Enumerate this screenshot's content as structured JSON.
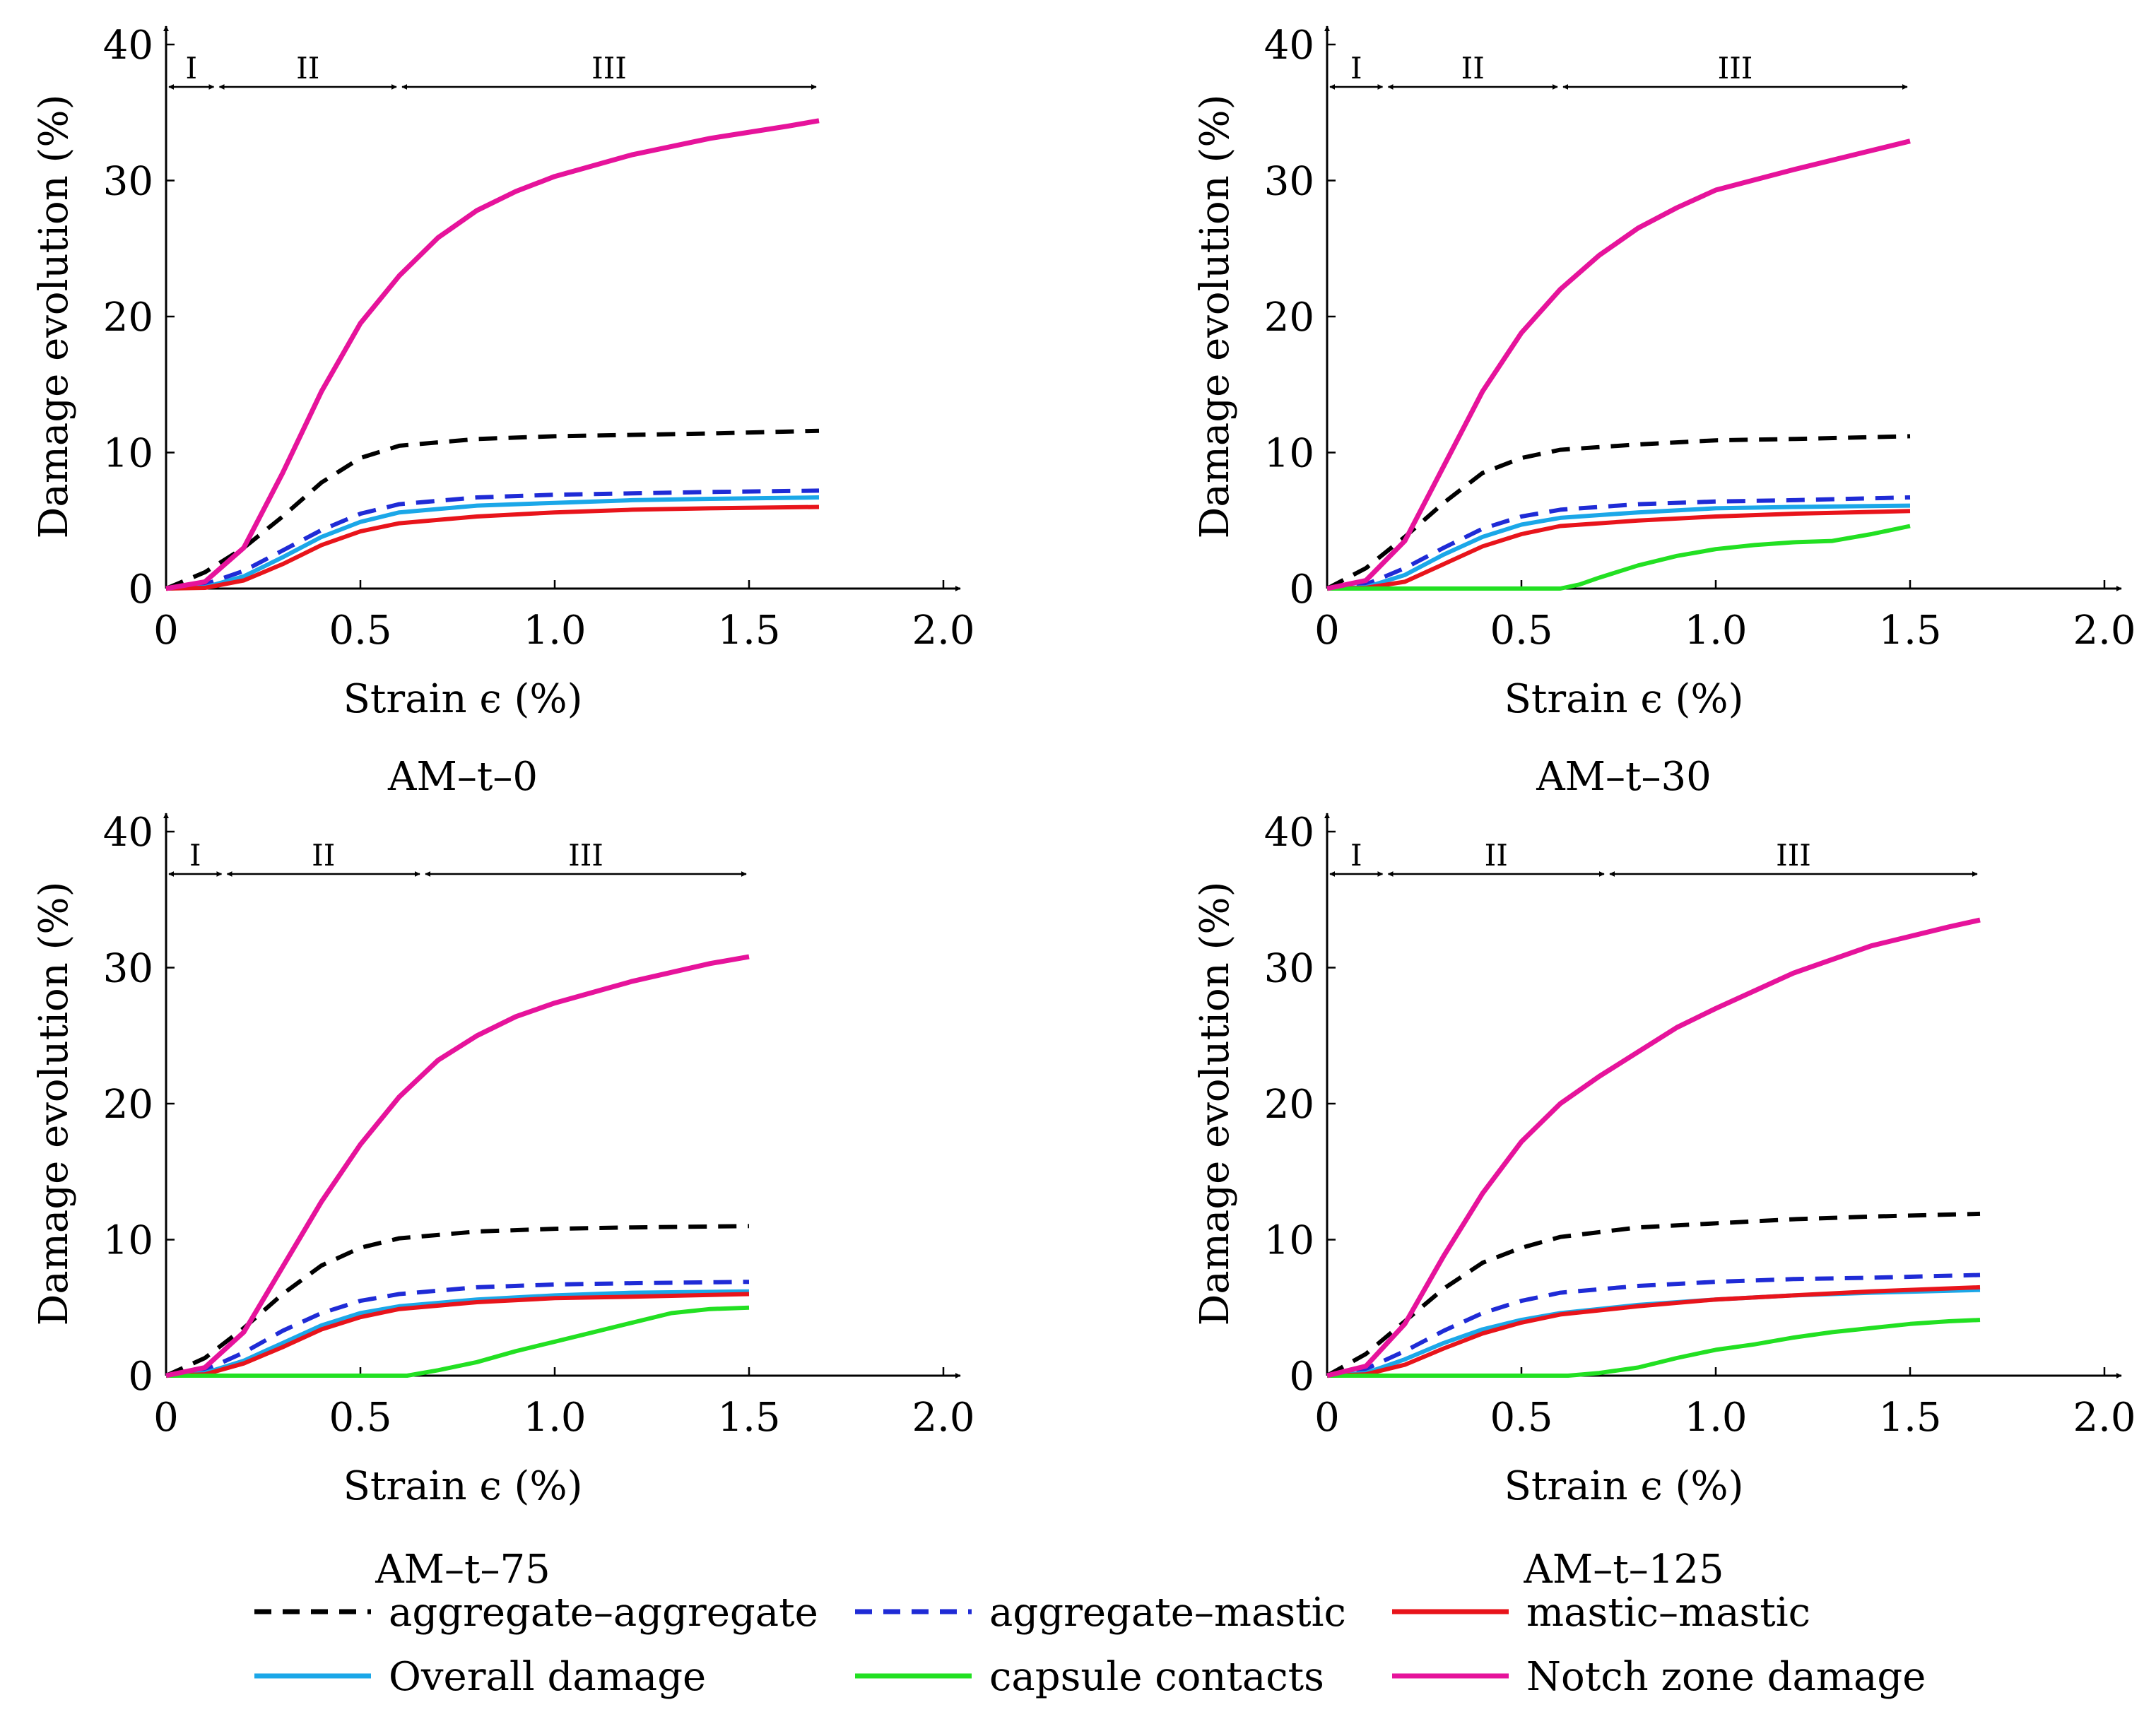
{
  "legend": [
    {
      "key": "aa",
      "label": "aggregate–aggregate",
      "color": "#000000",
      "dash": true
    },
    {
      "key": "am",
      "label": "aggregate–mastic",
      "color": "#1f2bd6",
      "dash": true
    },
    {
      "key": "mm",
      "label": "mastic–mastic",
      "color": "#e8141b",
      "dash": false
    },
    {
      "key": "ov",
      "label": "Overall damage",
      "color": "#1ba7e8",
      "dash": false
    },
    {
      "key": "cap",
      "label": "capsule contacts",
      "color": "#22e022",
      "dash": false
    },
    {
      "key": "notch",
      "label": "Notch zone damage",
      "color": "#e6139b",
      "dash": false
    }
  ],
  "chart_data": [
    {
      "type": "line",
      "title": "AM–t–0",
      "xlabel": "Strain ϵ (%)",
      "ylabel": "Damage evolution (%)",
      "xlim": [
        0,
        2.0
      ],
      "ylim": [
        0,
        40
      ],
      "xticks": [
        "0",
        "0.5",
        "1.0",
        "1.5",
        "2.0"
      ],
      "yticks": [
        "0",
        "10",
        "20",
        "30",
        "40"
      ],
      "regions": [
        {
          "label": "I",
          "from": 0,
          "to": 0.13
        },
        {
          "label": "II",
          "from": 0.13,
          "to": 0.6
        },
        {
          "label": "III",
          "from": 0.6,
          "to": 1.68
        }
      ],
      "series": [
        {
          "key": "aa",
          "name": "aggregate–aggregate",
          "x": [
            0,
            0.1,
            0.2,
            0.3,
            0.4,
            0.5,
            0.6,
            0.8,
            1.0,
            1.2,
            1.4,
            1.68
          ],
          "y": [
            0,
            1.2,
            3.0,
            5.3,
            7.8,
            9.6,
            10.5,
            11.0,
            11.2,
            11.3,
            11.4,
            11.6
          ]
        },
        {
          "key": "am",
          "name": "aggregate–mastic",
          "x": [
            0,
            0.1,
            0.2,
            0.3,
            0.4,
            0.5,
            0.6,
            0.8,
            1.0,
            1.2,
            1.4,
            1.68
          ],
          "y": [
            0,
            0.3,
            1.3,
            2.8,
            4.3,
            5.5,
            6.2,
            6.7,
            6.9,
            7.0,
            7.1,
            7.2
          ]
        },
        {
          "key": "ov",
          "name": "Overall damage",
          "x": [
            0,
            0.1,
            0.2,
            0.3,
            0.4,
            0.5,
            0.6,
            0.8,
            1.0,
            1.2,
            1.4,
            1.68
          ],
          "y": [
            0,
            0.1,
            0.9,
            2.3,
            3.8,
            4.9,
            5.6,
            6.1,
            6.3,
            6.5,
            6.6,
            6.7
          ]
        },
        {
          "key": "mm",
          "name": "mastic–mastic",
          "x": [
            0,
            0.1,
            0.2,
            0.3,
            0.4,
            0.5,
            0.6,
            0.8,
            1.0,
            1.2,
            1.4,
            1.68
          ],
          "y": [
            0,
            0.05,
            0.6,
            1.8,
            3.2,
            4.2,
            4.8,
            5.3,
            5.6,
            5.8,
            5.9,
            6.0
          ]
        },
        {
          "key": "notch",
          "name": "Notch zone damage",
          "x": [
            0,
            0.1,
            0.2,
            0.3,
            0.4,
            0.5,
            0.6,
            0.7,
            0.8,
            0.9,
            1.0,
            1.2,
            1.4,
            1.6,
            1.68
          ],
          "y": [
            0,
            0.5,
            3.0,
            8.5,
            14.5,
            19.5,
            23.0,
            25.8,
            27.8,
            29.2,
            30.3,
            31.9,
            33.1,
            34.0,
            34.4
          ]
        }
      ]
    },
    {
      "type": "line",
      "title": "AM–t–30",
      "xlabel": "Strain ϵ (%)",
      "ylabel": "Damage evolution (%)",
      "xlim": [
        0,
        2.0
      ],
      "ylim": [
        0,
        40
      ],
      "xticks": [
        "0",
        "0.5",
        "1.0",
        "1.5",
        "2.0"
      ],
      "yticks": [
        "0",
        "10",
        "20",
        "30",
        "40"
      ],
      "regions": [
        {
          "label": "I",
          "from": 0,
          "to": 0.15
        },
        {
          "label": "II",
          "from": 0.15,
          "to": 0.6
        },
        {
          "label": "III",
          "from": 0.6,
          "to": 1.5
        }
      ],
      "series": [
        {
          "key": "aa",
          "name": "aggregate–aggregate",
          "x": [
            0,
            0.1,
            0.2,
            0.3,
            0.4,
            0.5,
            0.6,
            0.8,
            1.0,
            1.2,
            1.5
          ],
          "y": [
            0,
            1.5,
            3.8,
            6.3,
            8.5,
            9.6,
            10.2,
            10.6,
            10.9,
            11.0,
            11.2
          ]
        },
        {
          "key": "am",
          "name": "aggregate–mastic",
          "x": [
            0,
            0.1,
            0.2,
            0.3,
            0.4,
            0.5,
            0.6,
            0.8,
            1.0,
            1.2,
            1.5
          ],
          "y": [
            0,
            0.3,
            1.5,
            3.0,
            4.4,
            5.3,
            5.8,
            6.2,
            6.4,
            6.5,
            6.7
          ]
        },
        {
          "key": "ov",
          "name": "Overall damage",
          "x": [
            0,
            0.1,
            0.2,
            0.3,
            0.4,
            0.5,
            0.6,
            0.8,
            1.0,
            1.2,
            1.5
          ],
          "y": [
            0,
            0.1,
            1.0,
            2.5,
            3.8,
            4.7,
            5.2,
            5.6,
            5.9,
            6.0,
            6.1
          ]
        },
        {
          "key": "mm",
          "name": "mastic–mastic",
          "x": [
            0,
            0.1,
            0.2,
            0.3,
            0.4,
            0.5,
            0.6,
            0.8,
            1.0,
            1.2,
            1.5
          ],
          "y": [
            0,
            0.05,
            0.5,
            1.8,
            3.1,
            4.0,
            4.6,
            5.0,
            5.3,
            5.5,
            5.7
          ]
        },
        {
          "key": "cap",
          "name": "capsule contacts",
          "x": [
            0,
            0.6,
            0.65,
            0.7,
            0.8,
            0.9,
            1.0,
            1.1,
            1.2,
            1.3,
            1.4,
            1.5
          ],
          "y": [
            0,
            0,
            0.3,
            0.8,
            1.7,
            2.4,
            2.9,
            3.2,
            3.4,
            3.5,
            4.0,
            4.6
          ]
        },
        {
          "key": "notch",
          "name": "Notch zone damage",
          "x": [
            0,
            0.1,
            0.2,
            0.3,
            0.4,
            0.5,
            0.6,
            0.7,
            0.8,
            0.9,
            1.0,
            1.2,
            1.4,
            1.5
          ],
          "y": [
            0,
            0.6,
            3.5,
            9.0,
            14.5,
            18.8,
            22.0,
            24.5,
            26.5,
            28.0,
            29.3,
            30.8,
            32.2,
            32.9
          ]
        }
      ]
    },
    {
      "type": "line",
      "title": "AM–t–75",
      "xlabel": "Strain ϵ (%)",
      "ylabel": "Damage evolution (%)",
      "xlim": [
        0,
        2.0
      ],
      "ylim": [
        0,
        40
      ],
      "xticks": [
        "0",
        "0.5",
        "1.0",
        "1.5",
        "2.0"
      ],
      "yticks": [
        "0",
        "10",
        "20",
        "30",
        "40"
      ],
      "regions": [
        {
          "label": "I",
          "from": 0,
          "to": 0.15
        },
        {
          "label": "II",
          "from": 0.15,
          "to": 0.66
        },
        {
          "label": "III",
          "from": 0.66,
          "to": 1.5
        }
      ],
      "series": [
        {
          "key": "aa",
          "name": "aggregate–aggregate",
          "x": [
            0,
            0.1,
            0.2,
            0.3,
            0.4,
            0.5,
            0.6,
            0.8,
            1.0,
            1.2,
            1.5
          ],
          "y": [
            0,
            1.3,
            3.5,
            6.0,
            8.1,
            9.4,
            10.1,
            10.6,
            10.8,
            10.9,
            11.0
          ]
        },
        {
          "key": "am",
          "name": "aggregate–mastic",
          "x": [
            0,
            0.1,
            0.2,
            0.3,
            0.4,
            0.5,
            0.6,
            0.8,
            1.0,
            1.2,
            1.5
          ],
          "y": [
            0,
            0.4,
            1.7,
            3.3,
            4.6,
            5.5,
            6.0,
            6.5,
            6.7,
            6.8,
            6.9
          ]
        },
        {
          "key": "ov",
          "name": "Overall damage",
          "x": [
            0,
            0.1,
            0.2,
            0.3,
            0.4,
            0.5,
            0.6,
            0.8,
            1.0,
            1.2,
            1.5
          ],
          "y": [
            0,
            0.2,
            1.1,
            2.4,
            3.7,
            4.6,
            5.1,
            5.6,
            5.9,
            6.1,
            6.2
          ]
        },
        {
          "key": "mm",
          "name": "mastic–mastic",
          "x": [
            0,
            0.1,
            0.2,
            0.3,
            0.4,
            0.5,
            0.6,
            0.8,
            1.0,
            1.2,
            1.5
          ],
          "y": [
            0,
            0.1,
            0.9,
            2.1,
            3.4,
            4.3,
            4.9,
            5.4,
            5.7,
            5.8,
            6.0
          ]
        },
        {
          "key": "cap",
          "name": "capsule contacts",
          "x": [
            0,
            0.62,
            0.7,
            0.8,
            0.9,
            1.0,
            1.1,
            1.2,
            1.3,
            1.4,
            1.5
          ],
          "y": [
            0,
            0,
            0.4,
            1.0,
            1.8,
            2.5,
            3.2,
            3.9,
            4.6,
            4.9,
            5.0
          ]
        },
        {
          "key": "notch",
          "name": "Notch zone damage",
          "x": [
            0,
            0.1,
            0.2,
            0.3,
            0.4,
            0.5,
            0.6,
            0.7,
            0.8,
            0.9,
            1.0,
            1.2,
            1.4,
            1.5
          ],
          "y": [
            0,
            0.6,
            3.2,
            8.0,
            12.8,
            17.0,
            20.5,
            23.2,
            25.0,
            26.4,
            27.4,
            29.0,
            30.3,
            30.8
          ]
        }
      ]
    },
    {
      "type": "line",
      "title": "AM–t–125",
      "xlabel": "Strain ϵ (%)",
      "ylabel": "Damage evolution (%)",
      "xlim": [
        0,
        2.0
      ],
      "ylim": [
        0,
        40
      ],
      "xticks": [
        "0",
        "0.5",
        "1.0",
        "1.5",
        "2.0"
      ],
      "yticks": [
        "0",
        "10",
        "20",
        "30",
        "40"
      ],
      "regions": [
        {
          "label": "I",
          "from": 0,
          "to": 0.15
        },
        {
          "label": "II",
          "from": 0.15,
          "to": 0.72
        },
        {
          "label": "III",
          "from": 0.72,
          "to": 1.68
        }
      ],
      "series": [
        {
          "key": "aa",
          "name": "aggregate–aggregate",
          "x": [
            0,
            0.1,
            0.2,
            0.3,
            0.4,
            0.5,
            0.6,
            0.8,
            1.0,
            1.2,
            1.4,
            1.68
          ],
          "y": [
            0,
            1.6,
            4.0,
            6.4,
            8.3,
            9.4,
            10.2,
            10.9,
            11.2,
            11.5,
            11.7,
            11.9
          ]
        },
        {
          "key": "am",
          "name": "aggregate–mastic",
          "x": [
            0,
            0.1,
            0.2,
            0.3,
            0.4,
            0.5,
            0.6,
            0.8,
            1.0,
            1.2,
            1.4,
            1.68
          ],
          "y": [
            0,
            0.5,
            1.8,
            3.3,
            4.6,
            5.5,
            6.1,
            6.6,
            6.9,
            7.1,
            7.2,
            7.4
          ]
        },
        {
          "key": "ov",
          "name": "Overall damage",
          "x": [
            0,
            0.1,
            0.2,
            0.3,
            0.4,
            0.5,
            0.6,
            0.8,
            1.0,
            1.2,
            1.4,
            1.68
          ],
          "y": [
            0,
            0.2,
            1.2,
            2.4,
            3.4,
            4.1,
            4.6,
            5.2,
            5.6,
            5.9,
            6.1,
            6.3
          ]
        },
        {
          "key": "mm",
          "name": "mastic–mastic",
          "x": [
            0,
            0.1,
            0.2,
            0.3,
            0.4,
            0.5,
            0.6,
            0.8,
            1.0,
            1.2,
            1.4,
            1.68
          ],
          "y": [
            0,
            0.1,
            0.8,
            2.0,
            3.1,
            3.9,
            4.5,
            5.1,
            5.6,
            5.9,
            6.2,
            6.5
          ]
        },
        {
          "key": "cap",
          "name": "capsule contacts",
          "x": [
            0,
            0.62,
            0.7,
            0.8,
            0.9,
            1.0,
            1.1,
            1.2,
            1.3,
            1.4,
            1.5,
            1.6,
            1.68
          ],
          "y": [
            0,
            0,
            0.2,
            0.6,
            1.3,
            1.9,
            2.3,
            2.8,
            3.2,
            3.5,
            3.8,
            4.0,
            4.1
          ]
        },
        {
          "key": "notch",
          "name": "Notch zone damage",
          "x": [
            0,
            0.1,
            0.2,
            0.3,
            0.4,
            0.5,
            0.6,
            0.7,
            0.8,
            0.9,
            1.0,
            1.2,
            1.4,
            1.6,
            1.68
          ],
          "y": [
            0,
            0.7,
            3.8,
            8.8,
            13.4,
            17.2,
            20.0,
            22.0,
            23.8,
            25.6,
            27.0,
            29.6,
            31.6,
            33.0,
            33.5
          ]
        }
      ]
    }
  ]
}
